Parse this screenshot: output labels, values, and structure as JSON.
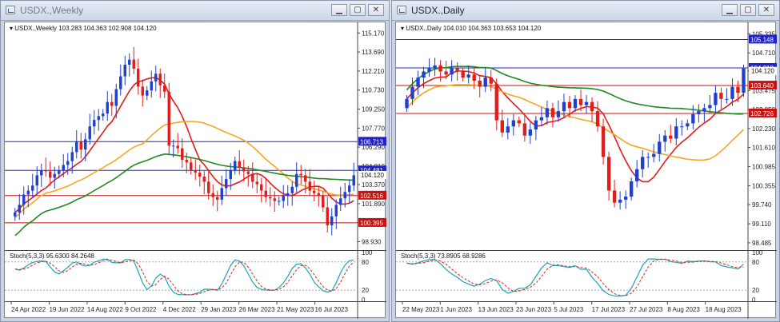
{
  "windows": [
    {
      "title": "USDX.,Weekly",
      "header": "USDX.,Weekly  103.283 104.363 102.908 104.120",
      "stoch_label": "Stoch(5,3,3) 95.6300 84.2648",
      "price_ticks": [
        "115.170",
        "113.690",
        "112.210",
        "110.730",
        "109.250",
        "107.770",
        "106.290",
        "104.810",
        "103.370",
        "101.890",
        "100.410",
        "98.930"
      ],
      "price_range": [
        98.4,
        115.5
      ],
      "hlines": [
        {
          "value": 106.713,
          "label": "106.713",
          "color": "#2222cc"
        },
        {
          "value": 104.481,
          "label": "104.481",
          "color": "#2222cc"
        },
        {
          "value": 102.516,
          "label": "102.516",
          "color": "#cc1111"
        },
        {
          "value": 100.395,
          "label": "100.395",
          "color": "#cc1111"
        }
      ],
      "current_price": "104.120",
      "stoch_ticks": [
        "100",
        "80",
        "20",
        "0"
      ],
      "date_labels": [
        "24 Apr 2022",
        "19 Jun 2022",
        "14 Aug 2022",
        "9 Oct 2022",
        "4 Dec 2022",
        "29 Jan 2023",
        "26 Mar 2023",
        "21 May 2023",
        "16 Jul 2023"
      ]
    },
    {
      "title": "USDX.,Daily",
      "header": "USDX.,Daily  104.010 104.363 103.653 104.120",
      "stoch_label": "Stoch(5,3,3) 73.8905 68.9286",
      "price_ticks": [
        "105.335",
        "104.710",
        "104.120",
        "103.475",
        "102.850",
        "102.230",
        "101.610",
        "100.985",
        "100.355",
        "99.740",
        "99.110",
        "98.485"
      ],
      "price_range": [
        98.3,
        105.5
      ],
      "hlines": [
        {
          "value": 105.148,
          "label": "105.148",
          "color": "#2222cc"
        },
        {
          "value": 104.218,
          "label": "104.218",
          "color": "#2222cc"
        },
        {
          "value": 103.64,
          "label": "103.640",
          "color": "#cc1111"
        },
        {
          "value": 102.726,
          "label": "102.726",
          "color": "#cc1111"
        }
      ],
      "current_price": "104.120",
      "stoch_ticks": [
        "100",
        "80",
        "20",
        "0"
      ],
      "date_labels": [
        "22 May 2023",
        "1 Jun 2023",
        "13 Jun 2023",
        "23 Jun 2023",
        "5 Jul 2023",
        "17 Jul 2023",
        "27 Jul 2023",
        "8 Aug 2023",
        "18 Aug 2023"
      ]
    }
  ],
  "chart_data": [
    {
      "type": "candlestick",
      "title": "USDX.,Weekly",
      "series": [
        {
          "name": "price_close_path",
          "values": [
            101.2,
            101.8,
            102.6,
            102.9,
            103.3,
            104.1,
            104.5,
            104.4,
            103.9,
            104.2,
            104.5,
            104.9,
            105.2,
            105.9,
            106.7,
            106.1,
            106.9,
            107.9,
            108.4,
            108.7,
            108.9,
            109.8,
            109.5,
            110.8,
            111.8,
            112.7,
            113.1,
            112.4,
            111.0,
            110.3,
            110.7,
            111.4,
            112.0,
            111.1,
            110.6,
            106.4,
            106.4,
            106.2,
            105.3,
            105.1,
            104.5,
            104.3,
            104.0,
            103.6,
            102.7,
            102.4,
            102.2,
            103.1,
            103.8,
            104.5,
            105.2,
            104.7,
            104.4,
            104.2,
            103.6,
            103.4,
            102.9,
            102.4,
            102.3,
            102.1,
            102.1,
            102.5,
            102.7,
            103.2,
            104.2,
            104.1,
            103.6,
            102.9,
            102.7,
            102.5,
            101.6,
            100.2,
            100.9,
            101.8,
            102.3,
            102.8,
            103.3,
            104.1
          ]
        }
      ]
    },
    {
      "type": "candlestick",
      "title": "USDX.,Daily",
      "series": [
        {
          "name": "price_close_path",
          "values": [
            103.2,
            103.6,
            103.9,
            104.1,
            104.2,
            104.3,
            104.1,
            104.0,
            104.2,
            104.1,
            103.9,
            104.0,
            103.8,
            103.6,
            103.9,
            103.7,
            102.5,
            102.1,
            102.3,
            102.5,
            102.4,
            102.0,
            102.2,
            102.5,
            102.6,
            102.9,
            102.6,
            102.8,
            103.1,
            102.9,
            103.2,
            103.0,
            103.1,
            102.8,
            102.3,
            101.3,
            100.2,
            99.8,
            99.9,
            100.0,
            100.5,
            100.9,
            101.3,
            101.3,
            101.4,
            101.8,
            102.0,
            101.9,
            102.3,
            102.3,
            102.4,
            102.7,
            102.8,
            102.9,
            103.0,
            103.4,
            103.2,
            103.2,
            103.6,
            103.4,
            104.2
          ]
        }
      ]
    }
  ]
}
